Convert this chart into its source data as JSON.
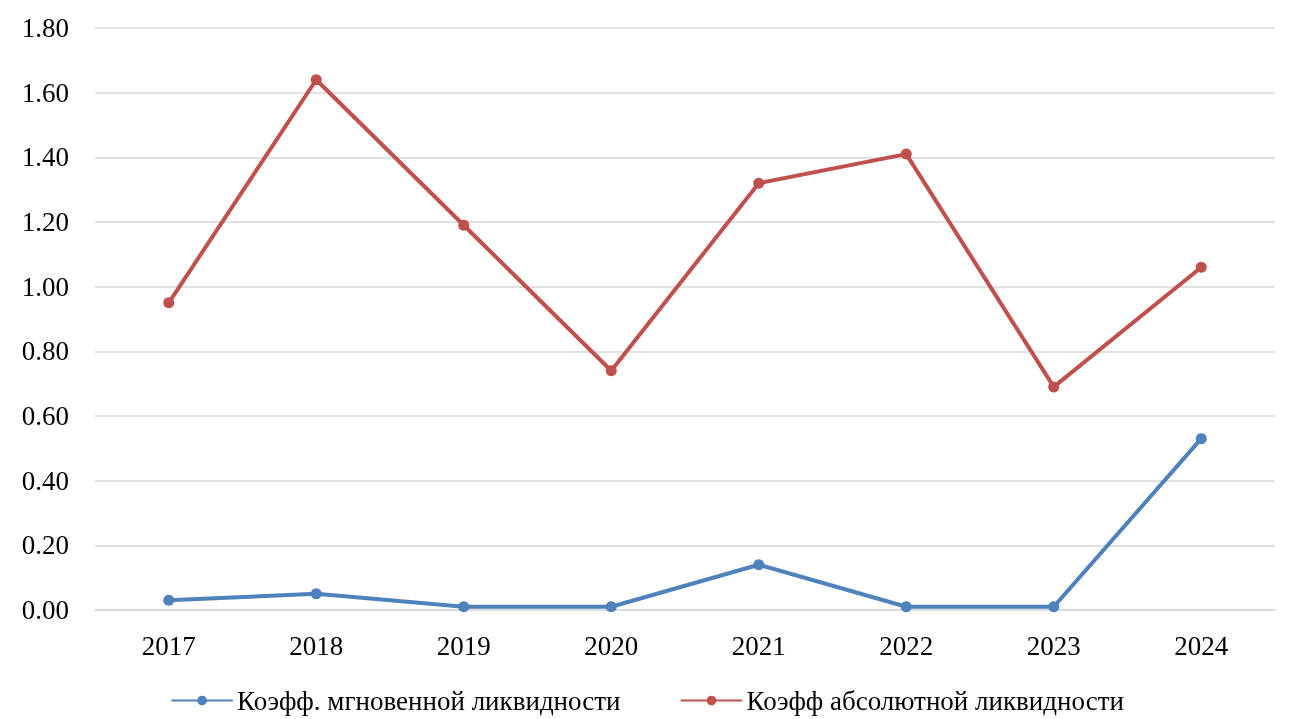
{
  "chart_data": {
    "type": "line",
    "categories": [
      "2017",
      "2018",
      "2019",
      "2020",
      "2021",
      "2022",
      "2023",
      "2024"
    ],
    "series": [
      {
        "name": "Коэфф. мгновенной ликвидности",
        "color": "#4f81bd",
        "values": [
          0.03,
          0.05,
          0.01,
          0.01,
          0.14,
          0.01,
          0.01,
          0.53
        ]
      },
      {
        "name": "Коэфф абсолютной ликвидности",
        "color": "#c0504d",
        "values": [
          0.95,
          1.64,
          1.19,
          0.74,
          1.32,
          1.41,
          0.69,
          1.06
        ]
      }
    ],
    "ylim": [
      0,
      1.8
    ],
    "yticks": [
      {
        "value": 0,
        "label": "0.00"
      },
      {
        "value": 0.2,
        "label": "0.20"
      },
      {
        "value": 0.4,
        "label": "0.40"
      },
      {
        "value": 0.6,
        "label": "0.60"
      },
      {
        "value": 0.8,
        "label": "0.80"
      },
      {
        "value": 1,
        "label": "1.00"
      },
      {
        "value": 1.2,
        "label": "1.20"
      },
      {
        "value": 1.4,
        "label": "1.40"
      },
      {
        "value": 1.6,
        "label": "1.60"
      },
      {
        "value": 1.8,
        "label": "1.80"
      }
    ],
    "grid": "y",
    "legend": "bottom",
    "marker": "circle",
    "line_style": "solid"
  }
}
